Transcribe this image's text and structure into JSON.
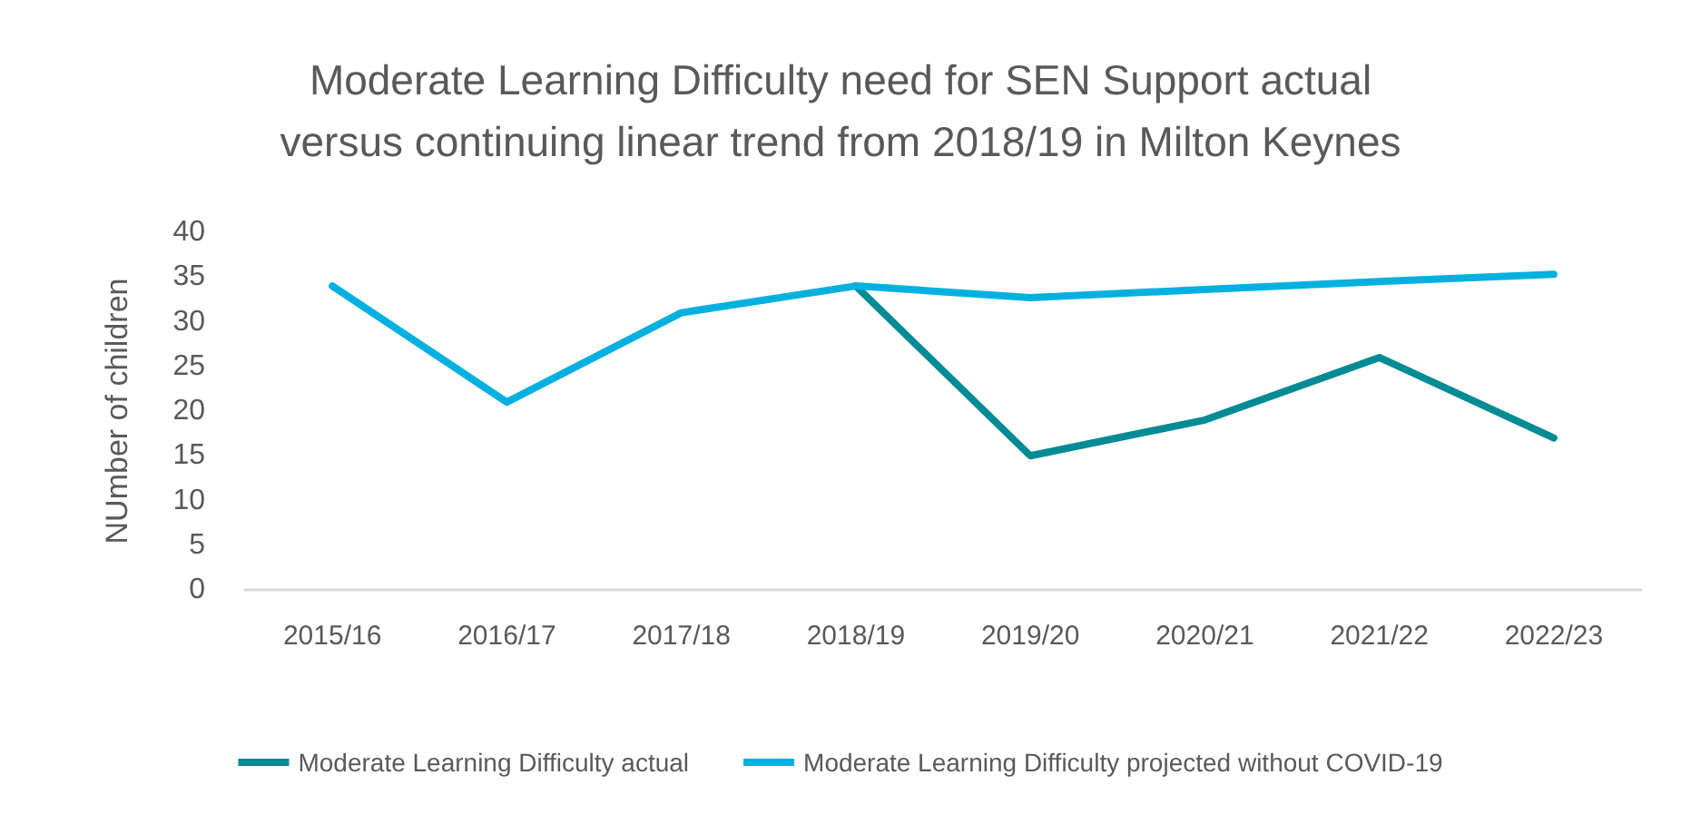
{
  "chart_data": {
    "type": "line",
    "title": "Moderate Learning Difficulty need for SEN Support actual\nversus continuing linear trend from 2018/19 in Milton Keynes",
    "ylabel": "NUmber of children",
    "categories": [
      "2015/16",
      "2016/17",
      "2017/18",
      "2018/19",
      "2019/20",
      "2020/21",
      "2021/22",
      "2022/23"
    ],
    "series": [
      {
        "name": "Moderate Learning Difficulty actual",
        "color": "#008b95",
        "values": [
          null,
          null,
          null,
          34,
          15,
          19,
          26,
          17
        ]
      },
      {
        "name": "Moderate Learning Difficulty projected without COVID-19",
        "color": "#00b0e0",
        "values": [
          34,
          21,
          31,
          34,
          32.7,
          33.6,
          34.5,
          35.3
        ]
      }
    ],
    "ylim": [
      0,
      40
    ],
    "yticks": [
      0,
      5,
      10,
      15,
      20,
      25,
      30,
      35,
      40
    ],
    "grid": false,
    "legend": "bottom",
    "marker": "none",
    "line_style": "solid"
  }
}
